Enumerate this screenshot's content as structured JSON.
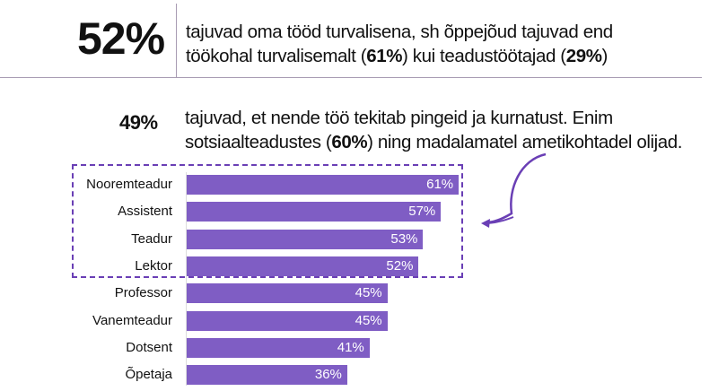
{
  "headline": {
    "value": "52%",
    "text_a": "tajuvad oma tööd turvalisena, sh õppejõud tajuvad end",
    "text_b": "töökohal turvalisemalt (",
    "bold1": "61%",
    "text_c": ") kui teadustöötajad (",
    "bold2": "29%",
    "text_d": ")"
  },
  "subhead": {
    "value": "49%",
    "text_a": "tajuvad, et nende töö tekitab pingeid ja kurnatust. Enim",
    "text_b": "sotsiaalteadustes (",
    "bold1": "60%",
    "text_c": ") ning madalamatel ametikohtadel olijad."
  },
  "chart_data": {
    "type": "bar",
    "orientation": "horizontal",
    "categories": [
      "Nooremteadur",
      "Assistent",
      "Teadur",
      "Lektor",
      "Professor",
      "Vanemteadur",
      "Dotsent",
      "Õpetaja"
    ],
    "values": [
      61,
      57,
      53,
      52,
      45,
      45,
      41,
      36
    ],
    "labels": [
      "61%",
      "57%",
      "53%",
      "52%",
      "45%",
      "45%",
      "41%",
      "36%"
    ],
    "unit": "%",
    "highlighted": [
      "Nooremteadur",
      "Assistent",
      "Teadur",
      "Lektor"
    ],
    "bar_color": "#7f5dc4",
    "highlight_color": "#6a3fb5"
  }
}
